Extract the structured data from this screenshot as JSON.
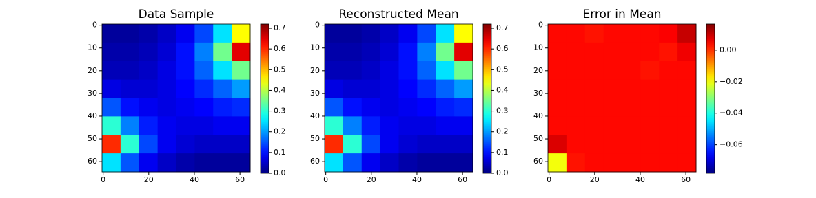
{
  "chart_data": [
    {
      "type": "heatmap",
      "title": "Data Sample",
      "colormap": "jet",
      "xlim": [
        -0.5,
        64.5
      ],
      "ylim": [
        64.5,
        -0.5
      ],
      "xticks": [
        0,
        20,
        40,
        60
      ],
      "yticks": [
        0,
        10,
        20,
        30,
        40,
        50,
        60
      ],
      "z": [
        [
          0.02,
          0.02,
          0.03,
          0.05,
          0.08,
          0.14,
          0.25,
          0.45
        ],
        [
          0.03,
          0.03,
          0.04,
          0.06,
          0.1,
          0.18,
          0.35,
          0.65
        ],
        [
          0.04,
          0.04,
          0.05,
          0.07,
          0.1,
          0.16,
          0.25,
          0.35
        ],
        [
          0.07,
          0.06,
          0.06,
          0.07,
          0.09,
          0.12,
          0.16,
          0.2
        ],
        [
          0.15,
          0.1,
          0.08,
          0.07,
          0.08,
          0.09,
          0.11,
          0.12
        ],
        [
          0.3,
          0.18,
          0.11,
          0.08,
          0.07,
          0.07,
          0.08,
          0.08
        ],
        [
          0.6,
          0.3,
          0.14,
          0.08,
          0.06,
          0.05,
          0.05,
          0.05
        ],
        [
          0.25,
          0.15,
          0.08,
          0.05,
          0.03,
          0.02,
          0.02,
          0.02
        ]
      ],
      "colorbar": {
        "lim": [
          0,
          0.72
        ],
        "ticks": [
          {
            "value": 0,
            "label": "0.0"
          },
          {
            "value": 0.1,
            "label": "0.1"
          },
          {
            "value": 0.2,
            "label": "0.2"
          },
          {
            "value": 0.3,
            "label": "0.3"
          },
          {
            "value": 0.4,
            "label": "0.4"
          },
          {
            "value": 0.5,
            "label": "0.5"
          },
          {
            "value": 0.6,
            "label": "0.6"
          },
          {
            "value": 0.7,
            "label": "0.7"
          }
        ]
      }
    },
    {
      "type": "heatmap",
      "title": "Reconstructed Mean",
      "colormap": "jet",
      "xlim": [
        -0.5,
        64.5
      ],
      "ylim": [
        64.5,
        -0.5
      ],
      "xticks": [
        0,
        20,
        40,
        60
      ],
      "yticks": [
        0,
        10,
        20,
        30,
        40,
        50,
        60
      ],
      "z": [
        [
          0.02,
          0.02,
          0.03,
          0.05,
          0.08,
          0.14,
          0.25,
          0.45
        ],
        [
          0.03,
          0.03,
          0.04,
          0.06,
          0.1,
          0.18,
          0.35,
          0.65
        ],
        [
          0.04,
          0.04,
          0.05,
          0.07,
          0.1,
          0.16,
          0.25,
          0.35
        ],
        [
          0.07,
          0.06,
          0.06,
          0.07,
          0.09,
          0.12,
          0.16,
          0.2
        ],
        [
          0.15,
          0.1,
          0.08,
          0.07,
          0.08,
          0.09,
          0.11,
          0.12
        ],
        [
          0.3,
          0.18,
          0.11,
          0.08,
          0.07,
          0.07,
          0.08,
          0.08
        ],
        [
          0.6,
          0.3,
          0.14,
          0.08,
          0.06,
          0.05,
          0.05,
          0.05
        ],
        [
          0.25,
          0.15,
          0.08,
          0.05,
          0.03,
          0.02,
          0.02,
          0.02
        ]
      ],
      "colorbar": {
        "lim": [
          0,
          0.72
        ],
        "ticks": [
          {
            "value": 0,
            "label": "0.0"
          },
          {
            "value": 0.1,
            "label": "0.1"
          },
          {
            "value": 0.2,
            "label": "0.2"
          },
          {
            "value": 0.3,
            "label": "0.3"
          },
          {
            "value": 0.4,
            "label": "0.4"
          },
          {
            "value": 0.5,
            "label": "0.5"
          },
          {
            "value": 0.6,
            "label": "0.6"
          },
          {
            "value": 0.7,
            "label": "0.7"
          }
        ]
      }
    },
    {
      "type": "heatmap",
      "title": "Error in Mean",
      "colormap": "jet",
      "xlim": [
        -0.5,
        64.5
      ],
      "ylim": [
        64.5,
        -0.5
      ],
      "xticks": [
        0,
        20,
        40,
        60
      ],
      "yticks": [
        0,
        10,
        20,
        30,
        40,
        50,
        60
      ],
      "z": [
        [
          0.004,
          0.004,
          0.003,
          0.004,
          0.004,
          0.004,
          0.005,
          0.01
        ],
        [
          0.004,
          0.004,
          0.004,
          0.004,
          0.004,
          0.004,
          0.003,
          0.006
        ],
        [
          0.004,
          0.004,
          0.004,
          0.004,
          0.004,
          0.003,
          0.004,
          0.004
        ],
        [
          0.004,
          0.004,
          0.004,
          0.004,
          0.004,
          0.004,
          0.004,
          0.004
        ],
        [
          0.004,
          0.004,
          0.004,
          0.004,
          0.004,
          0.004,
          0.004,
          0.004
        ],
        [
          0.004,
          0.004,
          0.004,
          0.004,
          0.004,
          0.004,
          0.004,
          0.004
        ],
        [
          0.008,
          0.004,
          0.004,
          0.004,
          0.004,
          0.004,
          0.004,
          0.004
        ],
        [
          -0.02,
          0.003,
          0.004,
          0.004,
          0.004,
          0.004,
          0.004,
          0.004
        ]
      ],
      "colorbar": {
        "lim": [
          -0.078,
          0.0165
        ],
        "ticks": [
          {
            "value": 0,
            "label": "0.00"
          },
          {
            "value": -0.02,
            "label": "−0.02"
          },
          {
            "value": -0.04,
            "label": "−0.04"
          },
          {
            "value": -0.06,
            "label": "−0.06"
          }
        ]
      }
    }
  ]
}
